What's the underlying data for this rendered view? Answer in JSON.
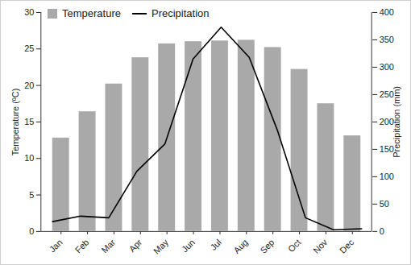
{
  "chart_data": {
    "type": "bar",
    "x": [
      "Jan",
      "Feb",
      "Mar",
      "Apr",
      "May",
      "Jun",
      "Jul",
      "Aug",
      "Sep",
      "Oct",
      "Nov",
      "Dec"
    ],
    "series": [
      {
        "name": "Temperature",
        "type": "bar",
        "color": "#a9a9a9",
        "axis": "y",
        "values": [
          12.8,
          16.4,
          20.2,
          23.8,
          25.7,
          26.0,
          26.1,
          26.2,
          25.2,
          22.2,
          17.5,
          13.1
        ]
      },
      {
        "name": "Precipitation",
        "type": "line",
        "color": "#000000",
        "axis": "y2",
        "values": [
          18,
          28,
          25,
          110,
          160,
          315,
          373,
          318,
          185,
          25,
          3,
          5
        ]
      }
    ],
    "ylabel": "Temperature (ºC)",
    "y2label": "Precipitation (mm)",
    "ylim": [
      0,
      30
    ],
    "yticks": [
      0,
      5,
      10,
      15,
      20,
      25,
      30
    ],
    "y2lim": [
      0,
      400
    ],
    "y2ticks": [
      0,
      50,
      100,
      150,
      200,
      250,
      300,
      350,
      400
    ],
    "legend": "top-left",
    "grid": false
  }
}
